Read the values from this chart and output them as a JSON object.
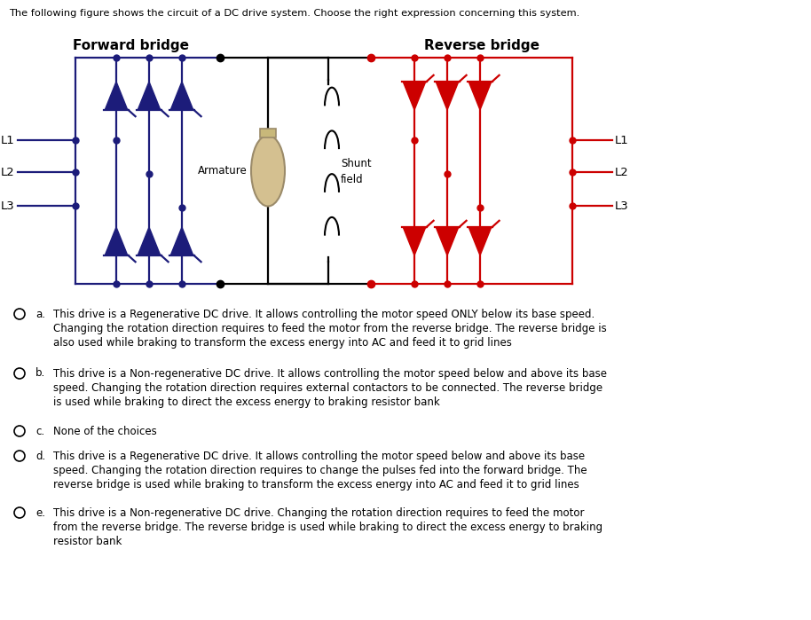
{
  "title_text": "The following figure shows the circuit of a DC drive system. Choose the right expression concerning this system.",
  "forward_bridge_label": "Forward bridge",
  "reverse_bridge_label": "Reverse bridge",
  "forward_color": "#1C1C7A",
  "reverse_color": "#CC0000",
  "bg_color": "#FFFFFF",
  "options": [
    {
      "key": "a",
      "text": "This drive is a Regenerative DC drive. It allows controlling the motor speed ONLY below its base speed. Changing the rotation direction requires to feed the motor from the reverse bridge. The reverse bridge is also used while braking to transform the excess energy into AC and feed it to grid lines"
    },
    {
      "key": "b",
      "text": "This drive is a Non-regenerative DC drive. It allows controlling the motor speed below and above its base speed. Changing the rotation direction requires external contactors to be connected. The reverse bridge is used while braking to direct the excess energy to braking resistor bank"
    },
    {
      "key": "c",
      "text": "None of the choices"
    },
    {
      "key": "d",
      "text": "This drive is a Regenerative DC drive. It allows controlling the motor speed below and above its base speed. Changing the rotation direction requires to change the pulses fed into the forward bridge. The reverse bridge is used while braking to transform the excess energy into AC and feed it to grid lines"
    },
    {
      "key": "e",
      "text": "This drive is a Non-regenerative DC drive. Changing the rotation direction requires to feed the motor from the reverse bridge. The reverse bridge is used while braking to direct the excess energy to braking resistor bank"
    }
  ],
  "fig_width": 9.14,
  "fig_height": 6.99,
  "dpi": 100
}
